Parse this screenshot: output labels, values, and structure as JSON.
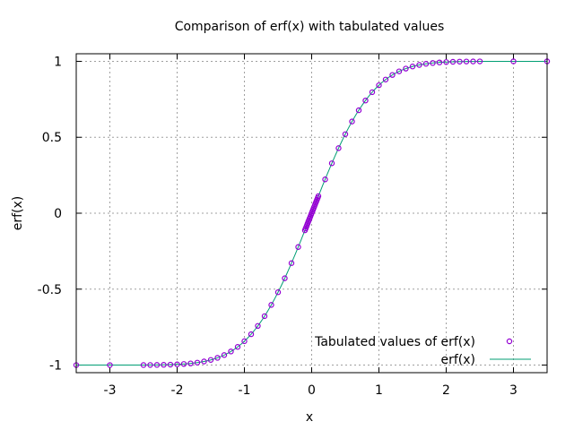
{
  "chart_data": {
    "type": "line",
    "title": "Comparison of erf(x) with tabulated values",
    "xlabel": "x",
    "ylabel": "erf(x)",
    "xlim": [
      -3.5,
      3.5
    ],
    "ylim": [
      -1.05,
      1.05
    ],
    "x_ticks": [
      -3,
      -2,
      -1,
      0,
      1,
      2,
      3
    ],
    "y_ticks": [
      -1,
      -0.5,
      0,
      0.5,
      1
    ],
    "x_tick_labels": [
      "-3",
      "-2",
      "-1",
      "0",
      "1",
      "2",
      "3"
    ],
    "y_tick_labels": [
      "-1",
      "-0.5",
      "0",
      "0.5",
      "1"
    ],
    "grid": true,
    "legend_position": "bottom-right",
    "series": [
      {
        "name": "Tabulated values of erf(x)",
        "type": "scatter",
        "marker": "circle",
        "color": "#9400d3",
        "x": [
          -3.5,
          -3.0,
          -2.5,
          -2.4,
          -2.3,
          -2.2,
          -2.1,
          -2.0,
          -1.9,
          -1.8,
          -1.7,
          -1.6,
          -1.5,
          -1.4,
          -1.3,
          -1.2,
          -1.1,
          -1.0,
          -0.9,
          -0.8,
          -0.7,
          -0.6,
          -0.5,
          -0.4,
          -0.3,
          -0.2,
          -0.1,
          -0.09,
          -0.08,
          -0.07,
          -0.06,
          -0.05,
          -0.04,
          -0.03,
          -0.02,
          -0.01,
          0.0,
          0.01,
          0.02,
          0.03,
          0.04,
          0.05,
          0.06,
          0.07,
          0.08,
          0.09,
          0.1,
          0.2,
          0.3,
          0.4,
          0.5,
          0.6,
          0.7,
          0.8,
          0.9,
          1.0,
          1.1,
          1.2,
          1.3,
          1.4,
          1.5,
          1.6,
          1.7,
          1.8,
          1.9,
          2.0,
          2.1,
          2.2,
          2.3,
          2.4,
          2.5,
          3.0,
          3.5
        ],
        "y": [
          -1.0,
          -1.0,
          -0.9996,
          -0.9993,
          -0.9989,
          -0.9981,
          -0.997,
          -0.9953,
          -0.9928,
          -0.9891,
          -0.9838,
          -0.9763,
          -0.9661,
          -0.9523,
          -0.934,
          -0.9103,
          -0.8802,
          -0.8427,
          -0.7969,
          -0.7421,
          -0.6778,
          -0.6039,
          -0.5205,
          -0.4284,
          -0.3286,
          -0.2227,
          -0.1125,
          -0.1013,
          -0.0901,
          -0.0789,
          -0.0676,
          -0.0564,
          -0.0451,
          -0.0338,
          -0.0226,
          -0.0113,
          0.0,
          0.0113,
          0.0226,
          0.0338,
          0.0451,
          0.0564,
          0.0676,
          0.0789,
          0.0901,
          0.1013,
          0.1125,
          0.2227,
          0.3286,
          0.4284,
          0.5205,
          0.6039,
          0.6778,
          0.7421,
          0.7969,
          0.8427,
          0.8802,
          0.9103,
          0.934,
          0.9523,
          0.9661,
          0.9763,
          0.9838,
          0.9891,
          0.9928,
          0.9953,
          0.997,
          0.9981,
          0.9989,
          0.9993,
          0.9996,
          1.0,
          1.0
        ]
      },
      {
        "name": "erf(x)",
        "type": "line",
        "color": "#009e73",
        "function": "erf",
        "x_range": [
          -3.5,
          3.5
        ]
      }
    ]
  }
}
